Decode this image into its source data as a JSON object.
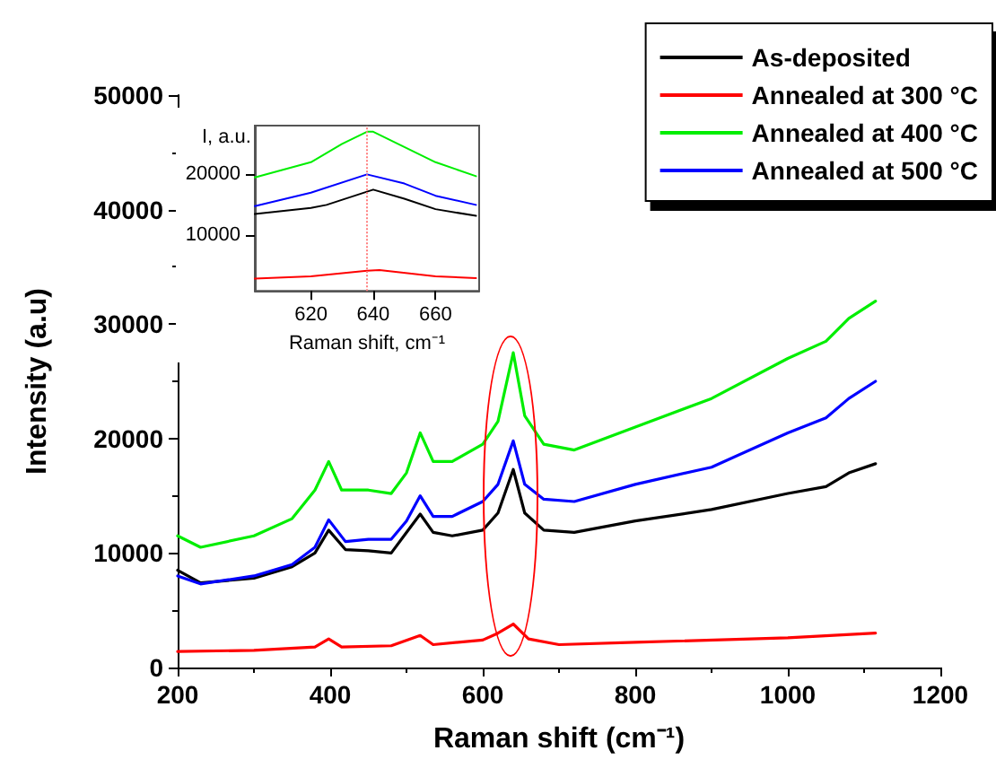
{
  "chart_data": [
    {
      "type": "line",
      "xlabel": "Raman shift (cm⁻¹)",
      "ylabel": "Intensity (a.u)",
      "xlim": [
        200,
        1200
      ],
      "xticks": [
        200,
        400,
        600,
        800,
        1000,
        1200
      ],
      "ylim": [
        0,
        50000
      ],
      "yticks": [
        0,
        10000,
        20000,
        30000,
        40000,
        50000
      ],
      "grid": false,
      "legend": "top right",
      "marker": "none",
      "line_style": "solid",
      "series": [
        {
          "name": "As-deposited",
          "color": "#000000",
          "x": [
            200,
            230,
            300,
            350,
            380,
            398,
            420,
            450,
            480,
            500,
            518,
            535,
            560,
            600,
            620,
            640,
            655,
            680,
            720,
            800,
            900,
            1000,
            1050,
            1080,
            1115
          ],
          "values": [
            8500,
            7400,
            7800,
            8800,
            10000,
            12000,
            10300,
            10200,
            10000,
            11800,
            13400,
            11800,
            11500,
            12000,
            13500,
            17300,
            13500,
            12000,
            11800,
            12800,
            13800,
            15200,
            15800,
            17000,
            17800
          ]
        },
        {
          "name": "Annealed at 300 °C",
          "color": "#ff0000",
          "x": [
            200,
            300,
            380,
            398,
            415,
            480,
            518,
            535,
            600,
            620,
            640,
            660,
            700,
            800,
            1000,
            1115
          ],
          "values": [
            1400,
            1500,
            1800,
            2500,
            1800,
            1900,
            2800,
            2000,
            2400,
            3000,
            3800,
            2500,
            2000,
            2200,
            2600,
            3000
          ]
        },
        {
          "name": "Annealed at 400 °C",
          "color": "#00ee00",
          "x": [
            200,
            230,
            300,
            350,
            380,
            398,
            415,
            450,
            480,
            500,
            518,
            535,
            560,
            600,
            620,
            640,
            655,
            680,
            720,
            800,
            900,
            1000,
            1050,
            1080,
            1115
          ],
          "values": [
            11500,
            10500,
            11500,
            13000,
            15500,
            18000,
            15500,
            15500,
            15200,
            17000,
            20500,
            18000,
            18000,
            19500,
            21500,
            27500,
            22000,
            19500,
            19000,
            21000,
            23500,
            27000,
            28500,
            30500,
            32000
          ]
        },
        {
          "name": "Annealed at 500 °C",
          "color": "#0000ff",
          "x": [
            200,
            230,
            300,
            350,
            380,
            398,
            420,
            450,
            480,
            500,
            518,
            535,
            560,
            600,
            620,
            640,
            655,
            680,
            720,
            800,
            900,
            1000,
            1050,
            1080,
            1115
          ],
          "values": [
            8000,
            7300,
            8000,
            9000,
            10500,
            12900,
            11000,
            11200,
            11200,
            12800,
            15000,
            13200,
            13200,
            14500,
            16000,
            19800,
            16000,
            14700,
            14500,
            16000,
            17500,
            20500,
            21800,
            23500,
            25000
          ]
        }
      ]
    },
    {
      "type": "line",
      "xlabel": "Raman shift, cm⁻¹",
      "ylabel": "I, a.u.",
      "xlim": [
        602,
        674
      ],
      "xticks": [
        620,
        640,
        660
      ],
      "ylim": [
        900,
        28000
      ],
      "yticks": [
        10000,
        20000
      ],
      "grid": false,
      "legend": false,
      "marker": "none",
      "line_style": "solid",
      "ref_lines": [
        {
          "axis": "x",
          "value": 638,
          "color": "#ff8080",
          "line_style": "dotted"
        }
      ],
      "series": [
        {
          "color": "#000000",
          "x": [
            602,
            620,
            625,
            640,
            650,
            660,
            673
          ],
          "values": [
            13500,
            14500,
            15000,
            17500,
            16000,
            14300,
            13200
          ]
        },
        {
          "color": "#ff0000",
          "x": [
            602,
            620,
            638,
            642,
            660,
            673
          ],
          "values": [
            2900,
            3300,
            4200,
            4300,
            3300,
            3000
          ]
        },
        {
          "color": "#00ee00",
          "x": [
            602,
            620,
            630,
            638,
            640,
            650,
            660,
            673
          ],
          "values": [
            19500,
            22000,
            25000,
            27000,
            27000,
            24500,
            22000,
            19700
          ]
        },
        {
          "color": "#0000ff",
          "x": [
            602,
            620,
            638,
            650,
            660,
            673
          ],
          "values": [
            14800,
            17000,
            20000,
            18500,
            16500,
            15000
          ]
        }
      ]
    }
  ]
}
